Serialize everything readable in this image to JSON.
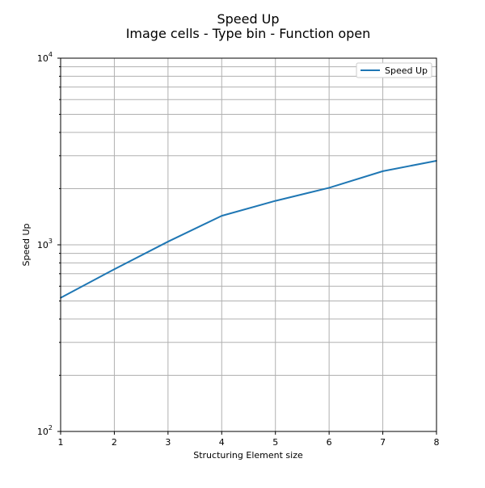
{
  "chart_data": {
    "type": "line",
    "title": "Speed Up",
    "subtitle": "Image cells - Type bin - Function open",
    "xlabel": "Structuring Element size",
    "ylabel": "Speed Up",
    "xlim": [
      1,
      8
    ],
    "ylim": [
      100,
      10000
    ],
    "yscale": "log",
    "grid": true,
    "legend_position": "top-right",
    "x_ticks": [
      "1",
      "2",
      "3",
      "4",
      "5",
      "6",
      "7",
      "8"
    ],
    "y_ticks": [
      {
        "base": "10",
        "exp": "2",
        "value": 100
      },
      {
        "base": "10",
        "exp": "3",
        "value": 1000
      },
      {
        "base": "10",
        "exp": "4",
        "value": 10000
      }
    ],
    "x": [
      1,
      2,
      3,
      4,
      5,
      6,
      7,
      8
    ],
    "series": [
      {
        "name": "Speed Up",
        "color": "#1f77b4",
        "values": [
          520,
          740,
          1040,
          1430,
          1720,
          2020,
          2480,
          2820
        ]
      }
    ]
  }
}
